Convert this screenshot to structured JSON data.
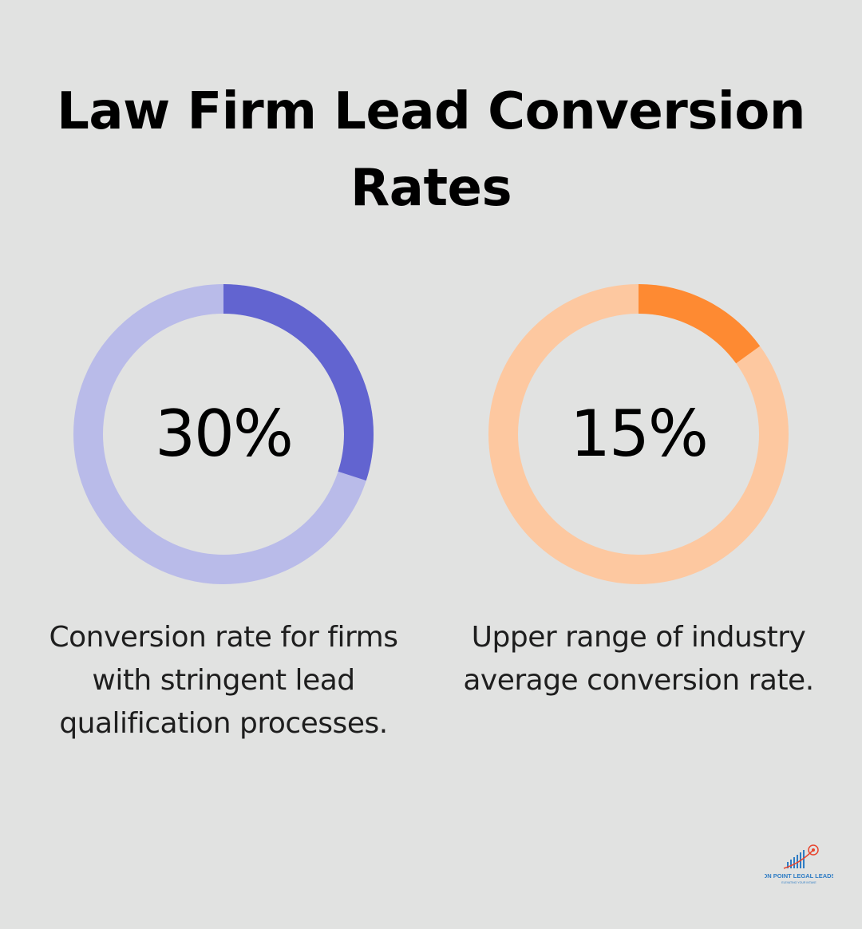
{
  "title": "Law Firm Lead Conversion Rates",
  "chart_data": [
    {
      "type": "pie",
      "value": 30,
      "label": "30%",
      "description": "Conversion rate for firms with stringent lead qualification processes.",
      "colors": {
        "filled": "#6264d0",
        "track": "#b9bbe9"
      }
    },
    {
      "type": "pie",
      "value": 15,
      "label": "15%",
      "description": "Upper range of industry average conversion rate.",
      "colors": {
        "filled": "#fe8a32",
        "track": "#fdc8a0"
      }
    }
  ],
  "logo": {
    "name": "ON POINT LEGAL LEADS",
    "tagline": "ELEVATING YOUR INTAKE",
    "icon": "bar-chart-target-icon",
    "colors": {
      "primary": "#2e7cc4",
      "accent": "#e8452e"
    }
  }
}
